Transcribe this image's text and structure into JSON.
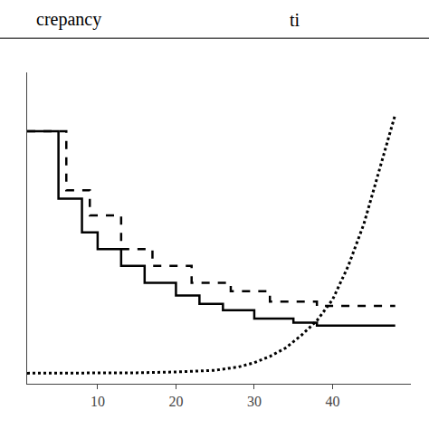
{
  "chart_data": {
    "type": "line",
    "annotations": [
      "crepancy",
      "ti"
    ],
    "series": [
      {
        "color": "#000000",
        "line_style": "solid",
        "x": [
          1,
          2,
          5,
          5,
          8,
          8,
          10,
          10,
          13,
          13,
          16,
          16,
          20,
          20,
          23,
          23,
          26,
          26,
          30,
          30,
          35,
          35,
          38,
          38,
          48
        ],
        "values": [
          0.58,
          0.58,
          0.58,
          0.42,
          0.42,
          0.34,
          0.34,
          0.3,
          0.3,
          0.26,
          0.26,
          0.22,
          0.22,
          0.19,
          0.19,
          0.17,
          0.17,
          0.155,
          0.155,
          0.135,
          0.135,
          0.125,
          0.125,
          0.118,
          0.118
        ]
      },
      {
        "color": "#000000",
        "line_style": "dashed",
        "x": [
          1,
          6,
          6,
          9,
          9,
          13,
          13,
          17,
          17,
          22,
          22,
          27,
          27,
          32,
          32,
          38,
          38,
          48
        ],
        "values": [
          0.58,
          0.58,
          0.44,
          0.44,
          0.38,
          0.38,
          0.3,
          0.3,
          0.26,
          0.26,
          0.22,
          0.22,
          0.2,
          0.2,
          0.175,
          0.175,
          0.165,
          0.165
        ]
      },
      {
        "color": "#000000",
        "line_style": "dotted",
        "x": [
          1,
          10,
          15,
          20,
          25,
          28,
          30,
          32,
          34,
          36,
          38,
          40,
          42,
          44,
          46,
          48
        ],
        "values": [
          0.005,
          0.005,
          0.006,
          0.008,
          0.012,
          0.02,
          0.03,
          0.045,
          0.065,
          0.095,
          0.13,
          0.18,
          0.26,
          0.36,
          0.49,
          0.62
        ]
      }
    ],
    "xlim": [
      1,
      50
    ],
    "ylim": [
      -0.02,
      0.72
    ],
    "xticks": [
      10,
      20,
      30,
      40
    ],
    "yticks": [],
    "tick_labels": "x",
    "grid": false
  }
}
